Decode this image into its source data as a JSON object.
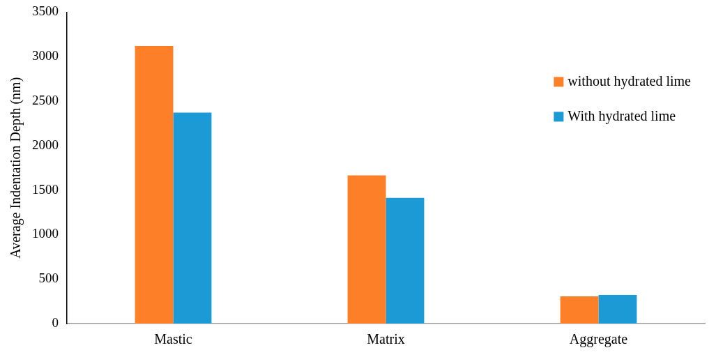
{
  "chart_data": {
    "type": "bar",
    "ylabel": "Average Indentation Depth (nm)",
    "categories": [
      "Mastic",
      "Matrix",
      "Aggregate"
    ],
    "series": [
      {
        "name": "without hydrated lime",
        "color": "#fd7f28",
        "values": [
          3120,
          1665,
          306
        ]
      },
      {
        "name": "With hydrated lime",
        "color": "#1b9ad6",
        "values": [
          2370,
          1413,
          322
        ]
      }
    ],
    "ylim": [
      0,
      3500
    ],
    "yticks": [
      0,
      500,
      1000,
      1500,
      2000,
      2500,
      3000,
      3500
    ],
    "grid": false,
    "legend": "top right"
  }
}
